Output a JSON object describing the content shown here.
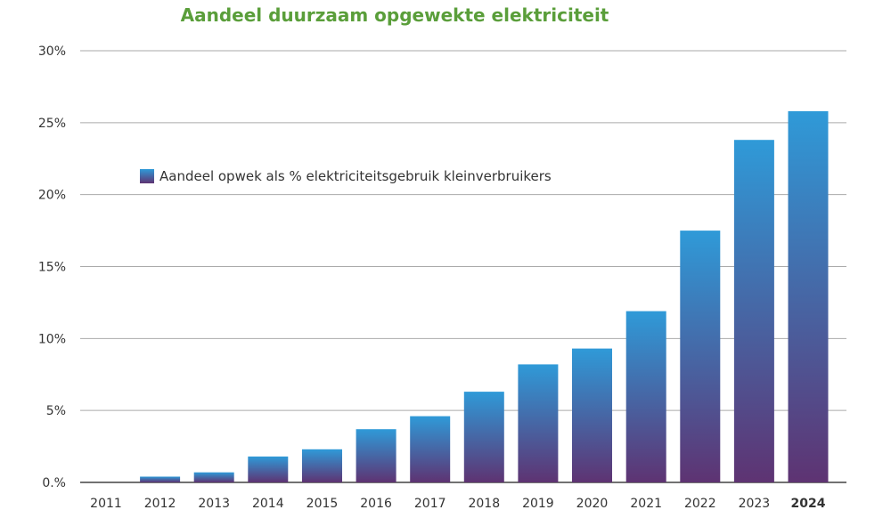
{
  "chart_data": {
    "type": "bar",
    "title": "Aandeel duurzaam opgewekte elektriciteit",
    "categories": [
      "2011",
      "2012",
      "2013",
      "2014",
      "2015",
      "2016",
      "2017",
      "2018",
      "2019",
      "2020",
      "2021",
      "2022",
      "2023",
      "2024"
    ],
    "series": [
      {
        "name": "Aandeel opwek als % elektriciteitsgebruik kleinverbruikers",
        "values": [
          0,
          0.4,
          0.7,
          1.8,
          2.3,
          3.7,
          4.6,
          6.3,
          8.2,
          9.3,
          11.9,
          17.5,
          23.8,
          25.8
        ]
      }
    ],
    "y_ticks": [
      "0.%",
      "5%",
      "10%",
      "15%",
      "20%",
      "25%",
      "30%"
    ],
    "y_tick_values": [
      0,
      5,
      10,
      15,
      20,
      25,
      30
    ],
    "ylim": [
      0,
      30
    ],
    "highlight_category": "2024",
    "grid": true,
    "legend_position": "upper-left inside plot",
    "colors": {
      "title": "#5a9e3a",
      "bar_top": "#2f9ad8",
      "bar_bottom": "#5e3372",
      "gridline": "#aaaaaa",
      "axis": "#444444",
      "text": "#333333"
    }
  }
}
